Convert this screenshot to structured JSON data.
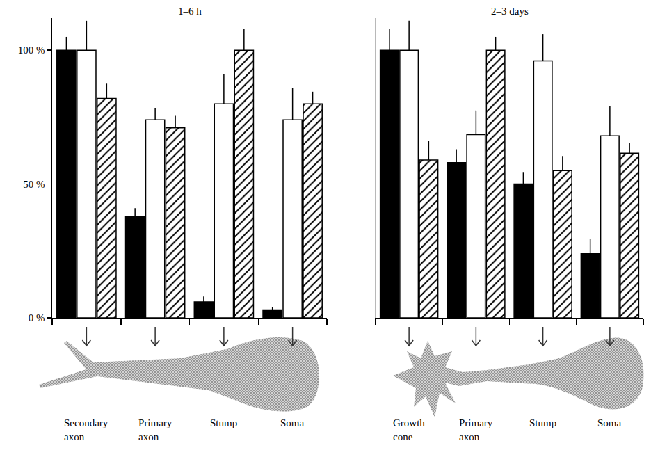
{
  "chart_data": [
    {
      "type": "bar",
      "title": "1–6 h",
      "categories": [
        "Secondary axon",
        "Primary axon",
        "Stump",
        "Soma"
      ],
      "series": [
        {
          "color": "#000000",
          "marker": "solid",
          "values": [
            100,
            38,
            6,
            3
          ],
          "errors": [
            5,
            3,
            2,
            1
          ]
        },
        {
          "color": "#ffffff",
          "marker": "solid",
          "values": [
            100,
            74,
            80,
            74
          ],
          "errors": [
            11,
            4.5,
            11,
            12
          ]
        },
        {
          "color": "#ffffff",
          "marker": "hatched",
          "values": [
            82,
            71,
            100,
            80
          ],
          "errors": [
            5.5,
            4.5,
            8,
            4.5
          ]
        }
      ],
      "ylim": [
        0,
        112
      ],
      "yticks": [
        {
          "value": 0,
          "label": "0 %"
        },
        {
          "value": 50,
          "label": "50 %"
        },
        {
          "value": 100,
          "label": "100 %"
        }
      ],
      "grid": false
    },
    {
      "type": "bar",
      "title": "2–3 days",
      "categories": [
        "Growth cone",
        "Primary axon",
        "Stump",
        "Soma"
      ],
      "series": [
        {
          "color": "#000000",
          "marker": "solid",
          "values": [
            100,
            58,
            50,
            24
          ],
          "errors": [
            8,
            5,
            4.5,
            5.5
          ]
        },
        {
          "color": "#ffffff",
          "marker": "solid",
          "values": [
            100,
            68.5,
            96,
            68
          ],
          "errors": [
            11,
            9,
            10,
            11
          ]
        },
        {
          "color": "#ffffff",
          "marker": "hatched",
          "values": [
            59,
            100,
            55,
            61.5
          ],
          "errors": [
            7,
            5,
            5.5,
            4
          ]
        }
      ],
      "ylim": [
        0,
        112
      ],
      "tick_labels": "x",
      "grid": false
    }
  ]
}
